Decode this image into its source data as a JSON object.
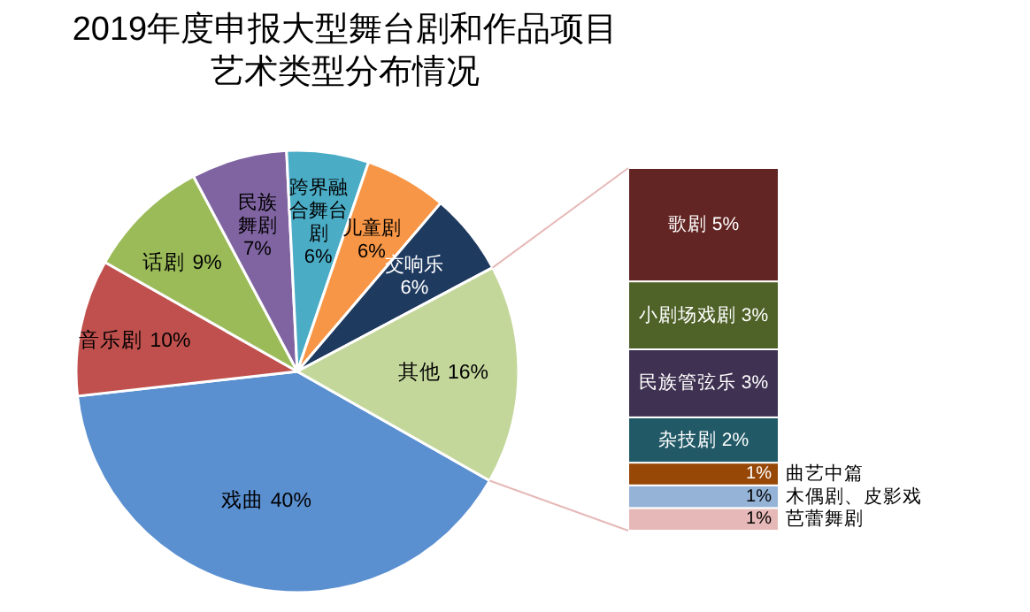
{
  "chart_data": [
    {
      "type": "pie",
      "title": "2019年度申报大型舞台剧和作品项目",
      "subtitle": "艺术类型分布情况",
      "categories": [
        "戏曲",
        "音乐剧",
        "话剧",
        "民族舞剧",
        "跨界融合舞台剧",
        "儿童剧",
        "交响乐",
        "其他"
      ],
      "values": [
        40,
        10,
        9,
        7,
        6,
        6,
        6,
        16
      ],
      "value_labels": [
        "40%",
        "10%",
        "9%",
        "7%",
        "6%",
        "6%",
        "6%",
        "16%"
      ],
      "colors": [
        "#5a8fd0",
        "#c0504d",
        "#9bbb59",
        "#8064a2",
        "#4bacc6",
        "#f79646",
        "#1f3a5f",
        "#c4d79b"
      ]
    },
    {
      "type": "bar",
      "stacked": true,
      "categories": [
        null
      ],
      "series": [
        {
          "name": "芭蕾舞剧",
          "color": "#e6b9b8",
          "values": [
            1
          ],
          "value_labels": [
            "1%"
          ]
        },
        {
          "name": "木偶剧、皮影戏",
          "color": "#95b3d7",
          "values": [
            1
          ],
          "value_labels": [
            "1%"
          ]
        },
        {
          "name": "曲艺中篇",
          "color": "#974706",
          "values": [
            1
          ],
          "value_labels": [
            "1%"
          ]
        },
        {
          "name": "杂技剧",
          "color": "#215967",
          "values": [
            2
          ],
          "value_labels": [
            "2%"
          ]
        },
        {
          "name": "民族管弦乐",
          "color": "#3f3151",
          "values": [
            3
          ],
          "value_labels": [
            "3%"
          ]
        },
        {
          "name": "小剧场戏剧",
          "color": "#4f6228",
          "values": [
            3
          ],
          "value_labels": [
            "3%"
          ]
        },
        {
          "name": "歌剧",
          "color": "#632523",
          "values": [
            5
          ],
          "value_labels": [
            "5%"
          ]
        }
      ]
    }
  ]
}
